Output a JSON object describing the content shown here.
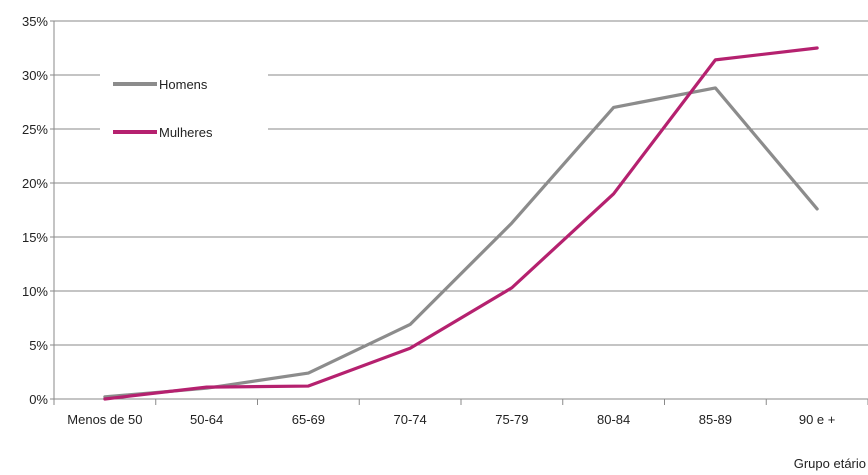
{
  "chart_data": {
    "type": "line",
    "categories": [
      "Menos de 50",
      "50-64",
      "65-69",
      "70-74",
      "75-79",
      "80-84",
      "85-89",
      "90 e +"
    ],
    "series": [
      {
        "name": "Homens",
        "values": [
          0.2,
          1.0,
          2.4,
          6.9,
          16.3,
          27.0,
          28.8,
          17.6
        ],
        "color": "#8c8c8c"
      },
      {
        "name": "Mulheres",
        "values": [
          0.0,
          1.1,
          1.2,
          4.7,
          10.3,
          19.0,
          31.4,
          32.5
        ],
        "color": "#b5216f"
      }
    ],
    "yticks": [
      "0%",
      "5%",
      "10%",
      "15%",
      "20%",
      "25%",
      "30%",
      "35%"
    ],
    "ylim": [
      0,
      35
    ],
    "xlabel": "Grupo etário",
    "ylabel": "",
    "grid": true,
    "legend": "top-left, inside plot"
  }
}
